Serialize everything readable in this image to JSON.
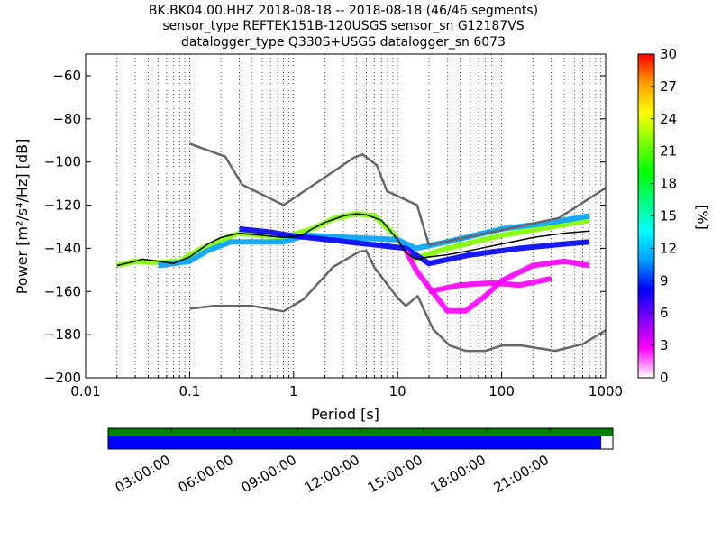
{
  "chart_data": {
    "type": "heatmap",
    "title_lines": [
      "BK.BK04.00.HHZ   2018-08-18 -- 2018-08-18  (46/46 segments)",
      "sensor_type REFTEK151B-120USGS sensor_sn G12187VS",
      "datalogger_type Q330S+USGS datalogger_sn 6073"
    ],
    "xlabel": "Period [s]",
    "ylabel": "Power [m²/s⁴/Hz] [dB]",
    "x_scale": "log",
    "xlim": [
      0.01,
      1000
    ],
    "ylim": [
      -200,
      -50
    ],
    "x_ticks": [
      {
        "value": 0.01,
        "label": "0.01"
      },
      {
        "value": 0.1,
        "label": "0.1"
      },
      {
        "value": 1,
        "label": "1"
      },
      {
        "value": 10,
        "label": "10"
      },
      {
        "value": 100,
        "label": "100"
      },
      {
        "value": 1000,
        "label": "1000"
      }
    ],
    "y_ticks": [
      {
        "value": -60,
        "label": "−60"
      },
      {
        "value": -80,
        "label": "−80"
      },
      {
        "value": -100,
        "label": "−100"
      },
      {
        "value": -120,
        "label": "−120"
      },
      {
        "value": -140,
        "label": "−140"
      },
      {
        "value": -160,
        "label": "−160"
      },
      {
        "value": -180,
        "label": "−180"
      },
      {
        "value": -200,
        "label": "−200"
      }
    ],
    "grid": "dotted vertical",
    "colorbar": {
      "label": "[%]",
      "range": [
        0,
        30
      ],
      "ticks": [
        {
          "value": 0,
          "label": "0"
        },
        {
          "value": 3,
          "label": "3"
        },
        {
          "value": 6,
          "label": "6"
        },
        {
          "value": 9,
          "label": "9"
        },
        {
          "value": 12,
          "label": "12"
        },
        {
          "value": 15,
          "label": "15"
        },
        {
          "value": 18,
          "label": "18"
        },
        {
          "value": 21,
          "label": "21"
        },
        {
          "value": 24,
          "label": "24"
        },
        {
          "value": 27,
          "label": "27"
        },
        {
          "value": 30,
          "label": "30"
        }
      ],
      "colors": [
        "#ffffff",
        "#ff00ff",
        "#7f00ff",
        "#0000ff",
        "#00a0ff",
        "#00ffff",
        "#00ff7f",
        "#00ff00",
        "#7fff00",
        "#ffff00",
        "#ff9f00",
        "#ff0000"
      ]
    },
    "series": [
      {
        "role": "high noise model",
        "color": "#666666",
        "points": [
          [
            0.1,
            -91.5
          ],
          [
            0.22,
            -97.5
          ],
          [
            0.32,
            -110.5
          ],
          [
            0.8,
            -120
          ],
          [
            3.8,
            -98
          ],
          [
            4.6,
            -96.5
          ],
          [
            6.3,
            -101.5
          ],
          [
            7.9,
            -113.5
          ],
          [
            15.4,
            -120
          ],
          [
            20,
            -138.5
          ],
          [
            354,
            -126
          ],
          [
            1000,
            -112
          ]
        ]
      },
      {
        "role": "low noise model",
        "color": "#666666",
        "points": [
          [
            0.1,
            -168
          ],
          [
            0.17,
            -166.7
          ],
          [
            0.4,
            -166.7
          ],
          [
            0.8,
            -169.2
          ],
          [
            1.24,
            -163.7
          ],
          [
            2.4,
            -148.6
          ],
          [
            4.3,
            -141.5
          ],
          [
            5,
            -141.2
          ],
          [
            6,
            -149
          ],
          [
            10,
            -163
          ],
          [
            12,
            -166.7
          ],
          [
            15.6,
            -162.1
          ],
          [
            21.9,
            -177.5
          ],
          [
            31.6,
            -185
          ],
          [
            45,
            -187.5
          ],
          [
            70,
            -187.5
          ],
          [
            101,
            -185
          ],
          [
            154,
            -185
          ],
          [
            328,
            -187.5
          ],
          [
            600,
            -184.4
          ],
          [
            1000,
            -178
          ]
        ]
      },
      {
        "role": "mode",
        "color": "#000000",
        "points": [
          [
            0.02,
            -148
          ],
          [
            0.03,
            -146
          ],
          [
            0.035,
            -145
          ],
          [
            0.05,
            -146
          ],
          [
            0.07,
            -147
          ],
          [
            0.1,
            -144
          ],
          [
            0.15,
            -138
          ],
          [
            0.2,
            -135
          ],
          [
            0.3,
            -133
          ],
          [
            0.5,
            -134
          ],
          [
            0.8,
            -135
          ],
          [
            1.2,
            -134
          ],
          [
            1.5,
            -131
          ],
          [
            2,
            -128
          ],
          [
            3,
            -125
          ],
          [
            4,
            -124
          ],
          [
            5,
            -124.5
          ],
          [
            7,
            -127
          ],
          [
            10,
            -136
          ],
          [
            12,
            -142
          ],
          [
            15,
            -145
          ],
          [
            20,
            -144
          ],
          [
            30,
            -143
          ],
          [
            50,
            -141
          ],
          [
            100,
            -138
          ],
          [
            200,
            -135
          ],
          [
            400,
            -133
          ],
          [
            700,
            -132
          ]
        ]
      }
    ],
    "density_branches": [
      {
        "color_value": 21,
        "points": [
          [
            0.02,
            -148
          ],
          [
            0.03,
            -146
          ],
          [
            0.05,
            -146.5
          ],
          [
            0.08,
            -146
          ],
          [
            0.12,
            -141
          ],
          [
            0.2,
            -136
          ],
          [
            0.3,
            -133
          ],
          [
            0.5,
            -134
          ],
          [
            0.8,
            -135
          ],
          [
            1.5,
            -131
          ],
          [
            2.5,
            -126
          ],
          [
            4,
            -124
          ],
          [
            6,
            -125
          ],
          [
            9,
            -133
          ],
          [
            14,
            -145
          ],
          [
            30,
            -140
          ],
          [
            100,
            -134
          ],
          [
            300,
            -130
          ],
          [
            700,
            -127
          ]
        ]
      },
      {
        "color_value": 12,
        "points": [
          [
            0.05,
            -148
          ],
          [
            0.1,
            -146
          ],
          [
            0.15,
            -141
          ],
          [
            0.25,
            -137
          ],
          [
            0.5,
            -137
          ],
          [
            0.8,
            -137
          ],
          [
            1.3,
            -134
          ],
          [
            10,
            -136
          ],
          [
            15,
            -140
          ],
          [
            30,
            -137
          ],
          [
            100,
            -131
          ],
          [
            300,
            -128
          ],
          [
            700,
            -125
          ]
        ]
      },
      {
        "color_value": 7,
        "points": [
          [
            0.3,
            -131
          ],
          [
            0.6,
            -132.5
          ],
          [
            0.9,
            -134
          ],
          [
            12,
            -140
          ],
          [
            20,
            -147
          ],
          [
            50,
            -143
          ],
          [
            150,
            -140
          ],
          [
            400,
            -138
          ],
          [
            700,
            -137
          ]
        ]
      },
      {
        "color_value": 3,
        "points": [
          [
            12,
            -141
          ],
          [
            15,
            -150
          ],
          [
            20,
            -158
          ],
          [
            30,
            -169
          ],
          [
            45,
            -169
          ],
          [
            70,
            -162
          ],
          [
            100,
            -155
          ],
          [
            200,
            -148
          ],
          [
            400,
            -146
          ],
          [
            700,
            -148
          ]
        ]
      },
      {
        "color_value": 2,
        "points": [
          [
            20,
            -160
          ],
          [
            40,
            -157
          ],
          [
            80,
            -156
          ],
          [
            150,
            -157
          ],
          [
            300,
            -154
          ]
        ]
      }
    ]
  },
  "timeline": {
    "labels": [
      "03:00:00",
      "06:00:00",
      "09:00:00",
      "12:00:00",
      "15:00:00",
      "18:00:00",
      "21:00:00"
    ],
    "hours": [
      3,
      6,
      9,
      12,
      15,
      18,
      21
    ],
    "span_hours": 24,
    "coverage_fraction": 0.977,
    "top_bar_color": "#008000",
    "data_bar_color": "#0000ff"
  }
}
